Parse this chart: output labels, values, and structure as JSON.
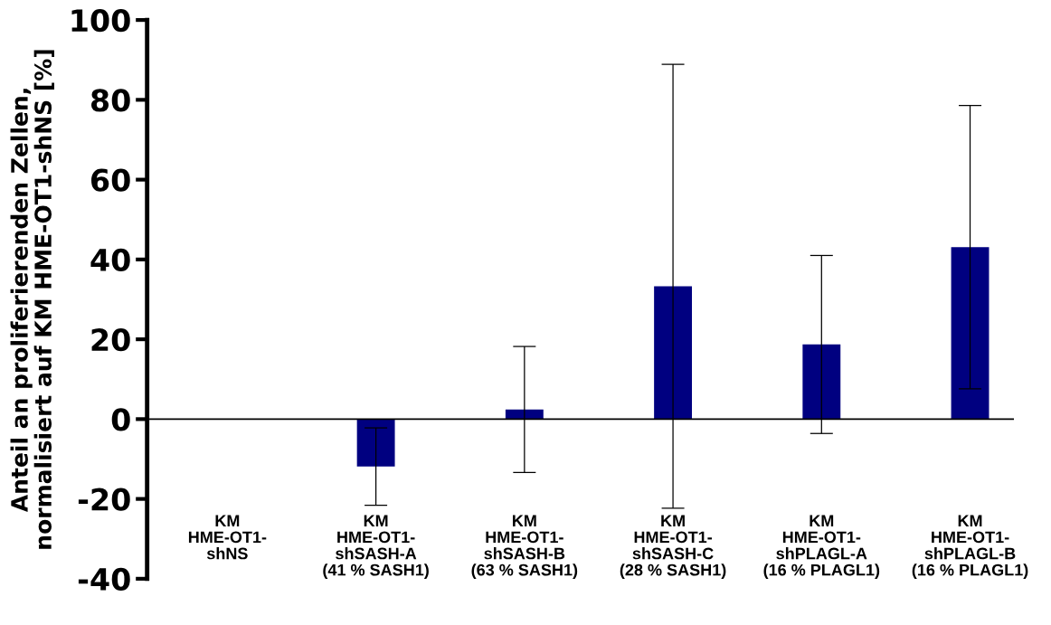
{
  "chart_data": {
    "type": "bar",
    "ylabel": "Anteil an proliferierenden Zellen,\nnormalisiert auf KM HME-OT1-shNS [%]",
    "categories": [
      "KM\nHME-OT1-\nshNS",
      "KM\nHME-OT1-\nshSASH-A\n(41 % SASH1)",
      "KM\nHME-OT1-\nshSASH-B\n(63 % SASH1)",
      "KM\nHME-OT1-\nshSASH-C\n(28 % SASH1)",
      "KM\nHME-OT1-\nshPLAGL-A\n(16 % PLAGL1)",
      "KM\nHME-OT1-\nshPLAGL-B\n(16 % PLAGL1)"
    ],
    "values": [
      0,
      -11.9,
      2.4,
      33.3,
      18.7,
      43.1
    ],
    "errors": [
      null,
      9.7,
      15.8,
      55.6,
      22.3,
      35.5
    ],
    "color": "#000080",
    "ylim": [
      -40,
      100
    ],
    "yticks": [
      -40,
      -20,
      0,
      20,
      40,
      60,
      80,
      100
    ],
    "grid": false,
    "legend": false
  }
}
